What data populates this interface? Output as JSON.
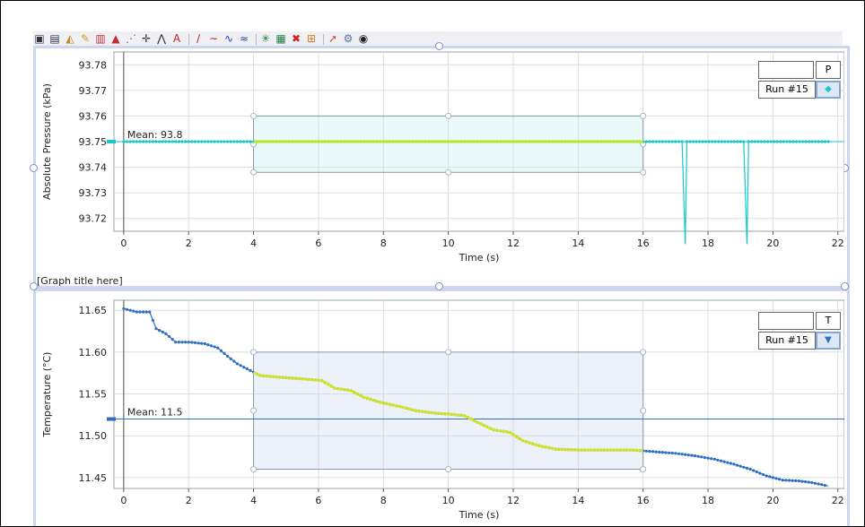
{
  "toolbar": {
    "icons": [
      "chart-icon",
      "table-icon",
      "fill-icon",
      "pencil-icon",
      "sensor-icon",
      "triangle-icon",
      "scatter-icon",
      "crosshair-icon",
      "peak-icon",
      "text-icon",
      "slope-icon",
      "curve-icon",
      "fit-line-icon",
      "fit-curve-icon",
      "star-icon",
      "grid-icon",
      "delete-icon",
      "split-icon",
      "pin-icon",
      "gear-icon",
      "eye-icon"
    ],
    "glyphs": [
      "▣",
      "▤",
      "◭",
      "✎",
      "▥",
      "▲",
      "⋰",
      "✛",
      "⋀",
      "A",
      "∕",
      "∼",
      "∿",
      "≈",
      "✳",
      "▦",
      "✖",
      "⊞",
      "➚",
      "⚙",
      "◉"
    ]
  },
  "graph_title": "[Graph title here]",
  "legend_top": {
    "key": "P",
    "run": "Run #15",
    "symbol": "◆"
  },
  "legend_bottom": {
    "key": "T",
    "run": "Run #15",
    "symbol": "▼"
  },
  "chart_data": [
    {
      "type": "line",
      "xlabel": "Time (s)",
      "ylabel": "Absolute Pressure (kPa)",
      "xlim": [
        -0.3,
        22.2
      ],
      "ylim": [
        93.715,
        93.785
      ],
      "x_ticks": [
        0,
        2,
        4,
        6,
        8,
        10,
        12,
        14,
        16,
        18,
        20,
        22
      ],
      "y_ticks": [
        93.72,
        93.73,
        93.74,
        93.75,
        93.76,
        93.77,
        93.78
      ],
      "y_tick_labels": [
        "93.72",
        "93.73",
        "93.74",
        "93.75",
        "93.76",
        "93.77",
        "93.78"
      ],
      "series": [
        {
          "name": "Run #15",
          "color": "#19c7c7",
          "points": [
            [
              0,
              93.75
            ],
            [
              17.2,
              93.75
            ],
            [
              17.3,
              93.71
            ],
            [
              17.35,
              93.75
            ],
            [
              19.1,
              93.75
            ],
            [
              19.2,
              93.71
            ],
            [
              19.25,
              93.75
            ],
            [
              21.8,
              93.75
            ]
          ]
        }
      ],
      "selection": {
        "x_range": [
          4,
          16
        ],
        "y_range": [
          93.738,
          93.76
        ]
      },
      "highlight": {
        "x_range": [
          4,
          16
        ],
        "value": 93.75,
        "color": "#c8e820"
      },
      "mean_label": "Mean: 93.8",
      "mean_value": 93.75
    },
    {
      "type": "line",
      "xlabel": "Time (s)",
      "ylabel": "Temperature (°C)",
      "xlim": [
        -0.3,
        22.2
      ],
      "ylim": [
        11.437,
        11.662
      ],
      "x_ticks": [
        0,
        2,
        4,
        6,
        8,
        10,
        12,
        14,
        16,
        18,
        20,
        22
      ],
      "y_ticks": [
        11.45,
        11.5,
        11.55,
        11.6,
        11.65
      ],
      "y_tick_labels": [
        "11.45",
        "11.50",
        "11.55",
        "11.60",
        "11.65"
      ],
      "series": [
        {
          "name": "Run #15",
          "color": "#2f6fc2",
          "points": [
            [
              0,
              11.652
            ],
            [
              0.4,
              11.648
            ],
            [
              0.8,
              11.648
            ],
            [
              1.0,
              11.628
            ],
            [
              1.3,
              11.622
            ],
            [
              1.6,
              11.612
            ],
            [
              2.0,
              11.612
            ],
            [
              2.5,
              11.61
            ],
            [
              2.9,
              11.605
            ],
            [
              3.2,
              11.595
            ],
            [
              3.5,
              11.586
            ],
            [
              3.9,
              11.578
            ],
            [
              4.2,
              11.572
            ],
            [
              4.8,
              11.57
            ],
            [
              5.5,
              11.568
            ],
            [
              6.1,
              11.566
            ],
            [
              6.5,
              11.557
            ],
            [
              7.0,
              11.554
            ],
            [
              7.4,
              11.546
            ],
            [
              7.9,
              11.54
            ],
            [
              8.5,
              11.535
            ],
            [
              9.0,
              11.53
            ],
            [
              9.6,
              11.527
            ],
            [
              10.0,
              11.526
            ],
            [
              10.5,
              11.524
            ],
            [
              10.9,
              11.516
            ],
            [
              11.4,
              11.507
            ],
            [
              11.9,
              11.504
            ],
            [
              12.3,
              11.494
            ],
            [
              12.8,
              11.488
            ],
            [
              13.3,
              11.484
            ],
            [
              14.0,
              11.483
            ],
            [
              15.0,
              11.483
            ],
            [
              15.7,
              11.483
            ],
            [
              16.3,
              11.481
            ],
            [
              17.0,
              11.479
            ],
            [
              17.6,
              11.476
            ],
            [
              18.2,
              11.472
            ],
            [
              18.8,
              11.466
            ],
            [
              19.3,
              11.46
            ],
            [
              19.8,
              11.452
            ],
            [
              20.3,
              11.447
            ],
            [
              20.8,
              11.446
            ],
            [
              21.2,
              11.444
            ],
            [
              21.7,
              11.44
            ]
          ]
        }
      ],
      "selection": {
        "x_range": [
          4,
          16
        ],
        "y_range": [
          11.46,
          11.6
        ]
      },
      "highlight": {
        "x_range": [
          4,
          16
        ],
        "color": "#e0ec20"
      },
      "mean_label": "Mean: 11.5",
      "mean_value": 11.52
    }
  ]
}
